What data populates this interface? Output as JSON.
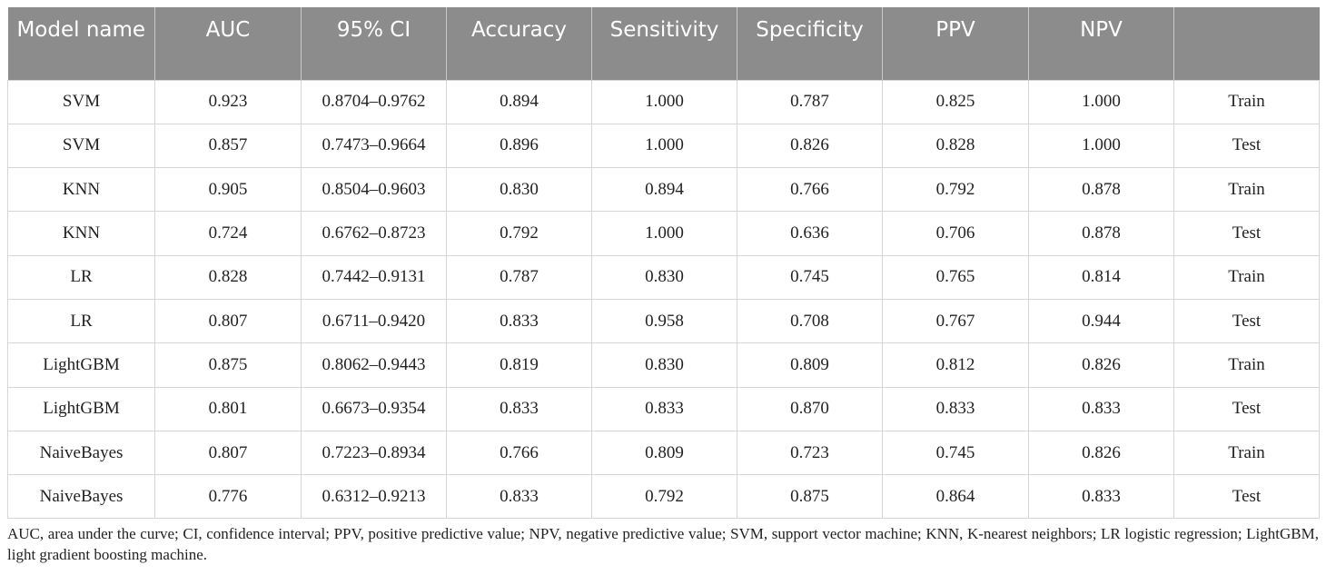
{
  "table": {
    "headers": [
      "Model name",
      "AUC",
      "95% CI",
      "Accuracy",
      "Sensitivity",
      "Specificity",
      "PPV",
      "NPV",
      ""
    ],
    "rows": [
      [
        "SVM",
        "0.923",
        "0.8704–0.9762",
        "0.894",
        "1.000",
        "0.787",
        "0.825",
        "1.000",
        "Train"
      ],
      [
        "SVM",
        "0.857",
        "0.7473–0.9664",
        "0.896",
        "1.000",
        "0.826",
        "0.828",
        "1.000",
        "Test"
      ],
      [
        "KNN",
        "0.905",
        "0.8504–0.9603",
        "0.830",
        "0.894",
        "0.766",
        "0.792",
        "0.878",
        "Train"
      ],
      [
        "KNN",
        "0.724",
        "0.6762–0.8723",
        "0.792",
        "1.000",
        "0.636",
        "0.706",
        "0.878",
        "Test"
      ],
      [
        "LR",
        "0.828",
        "0.7442–0.9131",
        "0.787",
        "0.830",
        "0.745",
        "0.765",
        "0.814",
        "Train"
      ],
      [
        "LR",
        "0.807",
        "0.6711–0.9420",
        "0.833",
        "0.958",
        "0.708",
        "0.767",
        "0.944",
        "Test"
      ],
      [
        "LightGBM",
        "0.875",
        "0.8062–0.9443",
        "0.819",
        "0.830",
        "0.809",
        "0.812",
        "0.826",
        "Train"
      ],
      [
        "LightGBM",
        "0.801",
        "0.6673–0.9354",
        "0.833",
        "0.833",
        "0.870",
        "0.833",
        "0.833",
        "Test"
      ],
      [
        "NaiveBayes",
        "0.807",
        "0.7223–0.8934",
        "0.766",
        "0.809",
        "0.723",
        "0.745",
        "0.826",
        "Train"
      ],
      [
        "NaiveBayes",
        "0.776",
        "0.6312–0.9213",
        "0.833",
        "0.792",
        "0.875",
        "0.864",
        "0.833",
        "Test"
      ]
    ]
  },
  "footnote": "AUC, area under the curve; CI, confidence interval; PPV, positive predictive value; NPV, negative predictive value; SVM, support vector machine; KNN, K-nearest neighbors; LR logistic regression; LightGBM, light gradient boosting machine.",
  "colors": {
    "header_bg": "#8c8c8c",
    "header_text": "#ffffff",
    "grid": "#d6d6d6",
    "body_text": "#222222"
  }
}
